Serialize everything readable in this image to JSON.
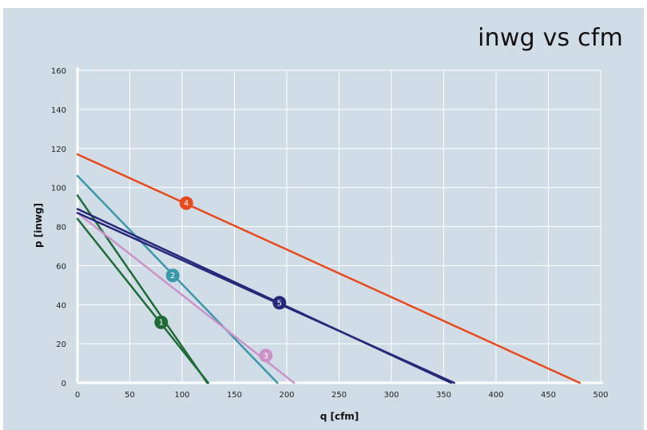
{
  "chart_data": {
    "type": "line",
    "title": "inwg vs cfm",
    "xlabel": "q [cfm]",
    "ylabel": "p [inwg]",
    "xlim": [
      0,
      500
    ],
    "ylim": [
      0,
      160
    ],
    "x_ticks": [
      0,
      50,
      100,
      150,
      200,
      250,
      300,
      350,
      400,
      450,
      500
    ],
    "y_ticks": [
      0,
      20,
      40,
      60,
      80,
      100,
      120,
      140,
      160
    ],
    "grid": true,
    "series": [
      {
        "name": "1",
        "color": "#1f6b38",
        "x": [
          0,
          125
        ],
        "y": [
          84,
          0
        ],
        "marker_x": 80,
        "marker_y": 31
      },
      {
        "name": "1",
        "color": "#1f6b38",
        "x": [
          0,
          124
        ],
        "y": [
          96,
          0
        ]
      },
      {
        "name": "2",
        "color": "#3a98aa",
        "x": [
          0,
          191
        ],
        "y": [
          106,
          0
        ],
        "marker_x": 91,
        "marker_y": 55
      },
      {
        "name": "3",
        "color": "#cc92c9",
        "x": [
          0,
          207
        ],
        "y": [
          87,
          0
        ],
        "marker_x": 180,
        "marker_y": 14
      },
      {
        "name": "4",
        "color": "#e8491d",
        "x": [
          0,
          480
        ],
        "y": [
          117,
          0
        ],
        "marker_x": 104,
        "marker_y": 92
      },
      {
        "name": "5",
        "color": "#26287a",
        "x": [
          0,
          357
        ],
        "y": [
          89,
          0
        ],
        "marker_x": 193,
        "marker_y": 41
      },
      {
        "name": "5",
        "color": "#26287a",
        "x": [
          0,
          360
        ],
        "y": [
          87,
          0
        ]
      }
    ]
  }
}
